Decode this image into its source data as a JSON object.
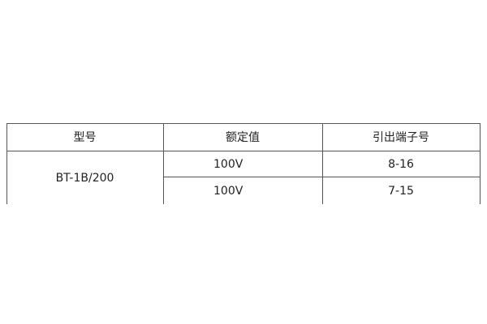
{
  "table": {
    "headers": [
      "型号",
      "额定值",
      "引出端子号"
    ],
    "model": "BT-1B/200",
    "rows": [
      {
        "rating": "100V",
        "terminals": "8-16"
      },
      {
        "rating": "100V",
        "terminals": "7-15"
      }
    ]
  }
}
